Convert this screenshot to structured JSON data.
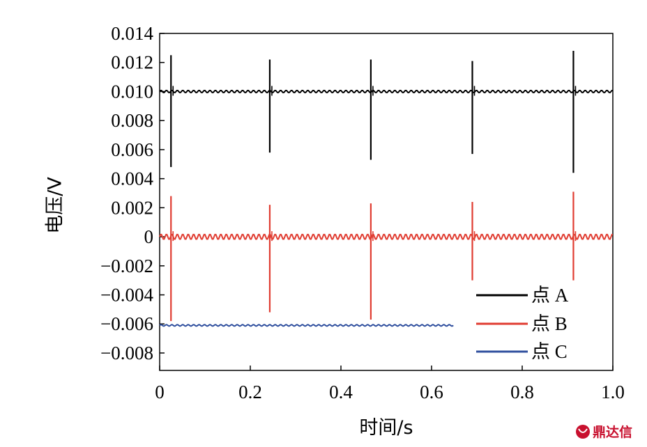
{
  "chart_data": {
    "type": "line",
    "title": "",
    "xlabel": "时间/s",
    "ylabel": "电压/V",
    "xlim": [
      0,
      1.0
    ],
    "ylim": [
      -0.0092,
      0.014
    ],
    "x_ticks": [
      {
        "value": 0,
        "label": "0"
      },
      {
        "value": 0.2,
        "label": "0.2"
      },
      {
        "value": 0.4,
        "label": "0.4"
      },
      {
        "value": 0.6,
        "label": "0.6"
      },
      {
        "value": 0.8,
        "label": "0.8"
      },
      {
        "value": 1.0,
        "label": "1.0"
      }
    ],
    "y_ticks": [
      {
        "value": 0.014,
        "label": "0.014"
      },
      {
        "value": 0.012,
        "label": "0.012"
      },
      {
        "value": 0.01,
        "label": "0.010"
      },
      {
        "value": 0.008,
        "label": "0.008"
      },
      {
        "value": 0.006,
        "label": "0.006"
      },
      {
        "value": 0.004,
        "label": "0.004"
      },
      {
        "value": 0.002,
        "label": "0.002"
      },
      {
        "value": 0,
        "label": "0"
      },
      {
        "value": -0.002,
        "label": "−0.002"
      },
      {
        "value": -0.004,
        "label": "−0.004"
      },
      {
        "value": -0.006,
        "label": "−0.006"
      },
      {
        "value": -0.008,
        "label": "−0.008"
      }
    ],
    "grid": false,
    "legend_position": "bottom-right",
    "series": [
      {
        "name": "点 A",
        "color": "#000000",
        "baseline": 0.01,
        "ripple": 8e-05,
        "x_end": 1.0,
        "spikes": [
          {
            "x": 0.025,
            "max": 0.0125,
            "min": 0.0048
          },
          {
            "x": 0.243,
            "max": 0.0122,
            "min": 0.0058
          },
          {
            "x": 0.466,
            "max": 0.0122,
            "min": 0.0053
          },
          {
            "x": 0.69,
            "max": 0.0121,
            "min": 0.0057
          },
          {
            "x": 0.913,
            "max": 0.0128,
            "min": 0.0044
          }
        ]
      },
      {
        "name": "点 B",
        "color": "#e03c31",
        "baseline": 0.0,
        "ripple": 0.00018,
        "x_end": 1.0,
        "spikes": [
          {
            "x": 0.025,
            "max": 0.0028,
            "min": -0.0058
          },
          {
            "x": 0.243,
            "max": 0.0022,
            "min": -0.0052
          },
          {
            "x": 0.466,
            "max": 0.0023,
            "min": -0.0057
          },
          {
            "x": 0.69,
            "max": 0.0024,
            "min": -0.003
          },
          {
            "x": 0.913,
            "max": 0.0031,
            "min": -0.003
          }
        ]
      },
      {
        "name": "点 C",
        "color": "#2f4f9e",
        "baseline": -0.0061,
        "ripple": 5e-05,
        "x_end": 0.648,
        "spikes": []
      }
    ]
  },
  "watermark": {
    "text": "鼎达信",
    "color": "#c8102e"
  }
}
